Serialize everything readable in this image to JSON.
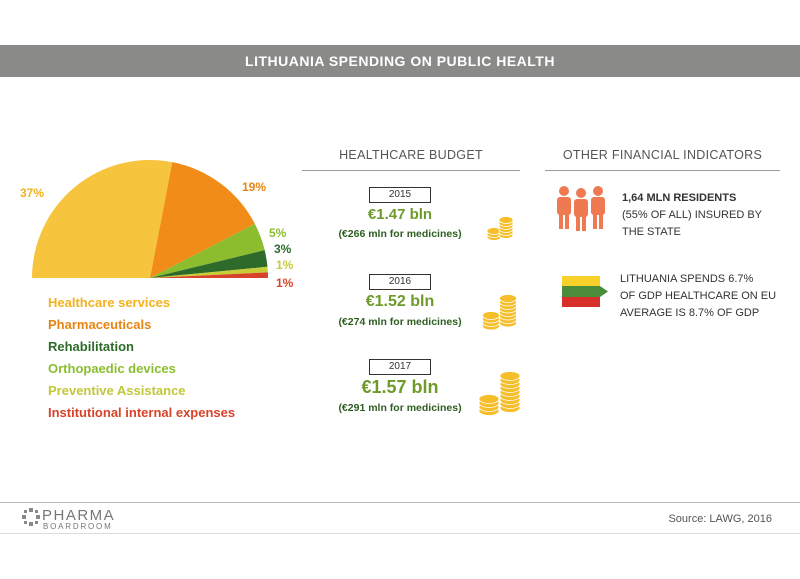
{
  "title": "LITHUANIA SPENDING ON PUBLIC HEALTH",
  "chart_data": {
    "type": "pie",
    "title": "",
    "categories": [
      "Healthcare services",
      "Pharmaceuticals",
      "Rehabilitation",
      "Orthopaedic devices",
      "Preventive Assistance",
      "Institutional internal expenses"
    ],
    "values": [
      37,
      19,
      3,
      5,
      1,
      1
    ],
    "labels": [
      "37%",
      "19%",
      "3%",
      "5%",
      "1%",
      "1%"
    ],
    "colors": [
      "#f7c43d",
      "#f08c17",
      "#2e6b2b",
      "#8cbd2f",
      "#c7cd35",
      "#d9422a"
    ],
    "note": "half pie (semicircle)"
  },
  "budget": {
    "heading": "HEALTHCARE BUDGET",
    "years": [
      {
        "year": "2015",
        "amount": "€1.47 bln",
        "medicines": "(€266 mln for medicines)"
      },
      {
        "year": "2016",
        "amount": "€1.52 bln",
        "medicines": "(€274 mln for medicines)"
      },
      {
        "year": "2017",
        "amount": "€1.57 bln",
        "medicines": "(€291 mln for medicines)"
      }
    ],
    "coin_color": "#f5be2a"
  },
  "indicators": {
    "heading": "OTHER FINANCIAL INDICATORS",
    "residents_bold": "1,64 MLN RESIDENTS",
    "residents_line2": "(55% OF ALL) INSURED BY",
    "residents_line3": "THE STATE",
    "gdp_line1": "LITHUANIA SPENDS 6.7%",
    "gdp_line2": "OF GDP HEALTHCARE ON EU",
    "gdp_line3": "AVERAGE IS 8.7% OF GDP",
    "people_icon_color": "#ef7a52",
    "flag_colors": [
      "#f8d02a",
      "#4a8c3a",
      "#d7302a"
    ]
  },
  "footer": {
    "logo_line1": "PHARMA",
    "logo_line2": "BOARDROOM",
    "source": "Source: LAWG, 2016"
  }
}
